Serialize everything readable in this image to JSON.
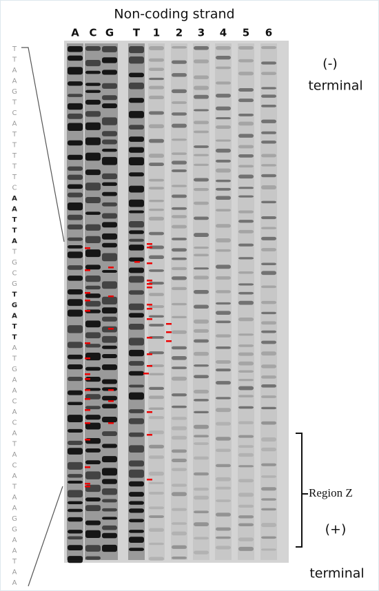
{
  "header": {
    "title": "Non-coding strand"
  },
  "lanes": [
    "A",
    "C",
    "G",
    "T",
    "1",
    "2",
    "3",
    "4",
    "5",
    "6"
  ],
  "labels": {
    "minus": "(-)",
    "minus_terminal": "terminal",
    "plus": "(+)",
    "plus_terminal": "terminal",
    "region": "Region Z"
  },
  "sequence": [
    {
      "base": "T",
      "bold": false
    },
    {
      "base": "T",
      "bold": false
    },
    {
      "base": "A",
      "bold": false
    },
    {
      "base": "A",
      "bold": false
    },
    {
      "base": "G",
      "bold": false
    },
    {
      "base": "T",
      "bold": false
    },
    {
      "base": "C",
      "bold": false
    },
    {
      "base": "A",
      "bold": false
    },
    {
      "base": "T",
      "bold": false
    },
    {
      "base": "T",
      "bold": false
    },
    {
      "base": "T",
      "bold": false
    },
    {
      "base": "T",
      "bold": false
    },
    {
      "base": "T",
      "bold": false
    },
    {
      "base": "C",
      "bold": false
    },
    {
      "base": "A",
      "bold": true
    },
    {
      "base": "A",
      "bold": true
    },
    {
      "base": "T",
      "bold": true
    },
    {
      "base": "T",
      "bold": true
    },
    {
      "base": "A",
      "bold": true
    },
    {
      "base": "T",
      "bold": false
    },
    {
      "base": "G",
      "bold": false
    },
    {
      "base": "C",
      "bold": false
    },
    {
      "base": "G",
      "bold": false
    },
    {
      "base": "T",
      "bold": true
    },
    {
      "base": "G",
      "bold": true
    },
    {
      "base": "A",
      "bold": true
    },
    {
      "base": "T",
      "bold": true
    },
    {
      "base": "T",
      "bold": true
    },
    {
      "base": "A",
      "bold": false
    },
    {
      "base": "T",
      "bold": false
    },
    {
      "base": "G",
      "bold": false
    },
    {
      "base": "A",
      "bold": false
    },
    {
      "base": "A",
      "bold": false
    },
    {
      "base": "C",
      "bold": false
    },
    {
      "base": "A",
      "bold": false
    },
    {
      "base": "C",
      "bold": false
    },
    {
      "base": "A",
      "bold": false
    },
    {
      "base": "T",
      "bold": false
    },
    {
      "base": "A",
      "bold": false
    },
    {
      "base": "C",
      "bold": false
    },
    {
      "base": "A",
      "bold": false
    },
    {
      "base": "T",
      "bold": false
    },
    {
      "base": "A",
      "bold": false
    },
    {
      "base": "A",
      "bold": false
    },
    {
      "base": "G",
      "bold": false
    },
    {
      "base": "G",
      "bold": false
    },
    {
      "base": "A",
      "bold": false
    },
    {
      "base": "A",
      "bold": false
    },
    {
      "base": "T",
      "bold": false
    },
    {
      "base": "A",
      "bold": false
    },
    {
      "base": "A",
      "bold": false
    }
  ]
}
